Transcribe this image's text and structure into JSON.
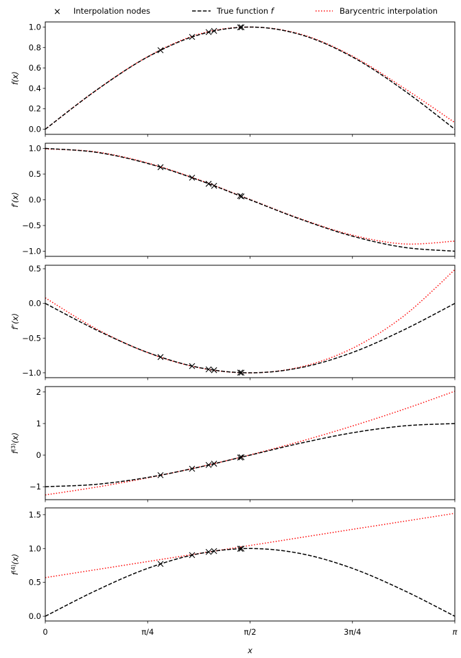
{
  "legend": {
    "placement": "top",
    "entries": [
      {
        "label": "Interpolation nodes",
        "style": "x-marker",
        "color": "#000000"
      },
      {
        "label": "True function f",
        "style": "dashed",
        "color": "#000000"
      },
      {
        "label": "Barycentric interpolation",
        "style": "dotted",
        "color": "#ff0000"
      }
    ]
  },
  "chart_data": [
    {
      "type": "line",
      "ylabel": "f(x)",
      "ylabel_sup": "",
      "ylabel_base": "f",
      "ylabel_prime": "",
      "xlim": [
        0,
        3.1416
      ],
      "ylim": [
        -0.05,
        1.05
      ],
      "yticks": [
        0.0,
        0.2,
        0.4,
        0.6,
        0.8,
        1.0
      ],
      "ytick_labels": [
        "0.0",
        "0.2",
        "0.4",
        "0.6",
        "0.8",
        "1.0"
      ],
      "x": [
        0,
        0.3927,
        0.7854,
        1.1781,
        1.5708,
        1.9635,
        2.3562,
        2.7489,
        3.1416
      ],
      "series": [
        {
          "name": "True function f",
          "values": [
            0,
            0.3827,
            0.7071,
            0.9239,
            1.0,
            0.9239,
            0.7071,
            0.3827,
            0
          ]
        },
        {
          "name": "Barycentric interpolation",
          "values": [
            0,
            0.383,
            0.71,
            0.93,
            1.0,
            0.928,
            0.715,
            0.405,
            0.065
          ]
        }
      ],
      "nodes": {
        "x": [
          0.884,
          1.126,
          1.253,
          1.295,
          1.495,
          1.505
        ],
        "y": [
          0.773,
          0.903,
          0.95,
          0.962,
          0.997,
          0.998
        ]
      }
    },
    {
      "type": "line",
      "ylabel": "f′(x)",
      "ylabel_sup": "",
      "ylabel_base": "f",
      "ylabel_prime": "′",
      "xlim": [
        0,
        3.1416
      ],
      "ylim": [
        -1.1,
        1.1
      ],
      "yticks": [
        -1.0,
        -0.5,
        0.0,
        0.5,
        1.0
      ],
      "ytick_labels": [
        "−1.0",
        "−0.5",
        "0.0",
        "0.5",
        "1.0"
      ],
      "x": [
        0,
        0.3927,
        0.7854,
        1.1781,
        1.5708,
        1.9635,
        2.3562,
        2.7489,
        3.1416
      ],
      "series": [
        {
          "name": "True function f",
          "values": [
            1,
            0.9239,
            0.7071,
            0.3827,
            0,
            -0.3827,
            -0.7071,
            -0.9239,
            -1
          ]
        },
        {
          "name": "Barycentric interpolation",
          "values": [
            0.99,
            0.93,
            0.715,
            0.389,
            0.006,
            -0.375,
            -0.688,
            -0.858,
            -0.804
          ]
        }
      ],
      "nodes": {
        "x": [
          0.884,
          1.126,
          1.253,
          1.295,
          1.495,
          1.505
        ],
        "y": [
          0.634,
          0.43,
          0.311,
          0.272,
          0.075,
          0.066
        ]
      }
    },
    {
      "type": "line",
      "ylabel": "f″(x)",
      "ylabel_sup": "",
      "ylabel_base": "f",
      "ylabel_prime": "″",
      "xlim": [
        0,
        3.1416
      ],
      "ylim": [
        -1.07,
        0.55
      ],
      "yticks": [
        -1.0,
        -0.5,
        0.0,
        0.5
      ],
      "ytick_labels": [
        "−1.0",
        "−0.5",
        "0.0",
        "0.5"
      ],
      "x": [
        0,
        0.3927,
        0.7854,
        1.1781,
        1.5708,
        1.9635,
        2.3562,
        2.7489,
        3.1416
      ],
      "series": [
        {
          "name": "True function f",
          "values": [
            0,
            -0.3827,
            -0.7071,
            -0.9239,
            -1.0,
            -0.9239,
            -0.7071,
            -0.3827,
            0
          ]
        },
        {
          "name": "Barycentric interpolation",
          "values": [
            0.08,
            -0.368,
            -0.709,
            -0.926,
            -1.001,
            -0.914,
            -0.647,
            -0.183,
            0.487
          ]
        }
      ],
      "nodes": {
        "x": [
          0.884,
          1.126,
          1.253,
          1.295,
          1.495,
          1.505
        ],
        "y": [
          -0.773,
          -0.903,
          -0.95,
          -0.962,
          -0.997,
          -0.998
        ]
      }
    },
    {
      "type": "line",
      "ylabel": "f(3)(x)",
      "ylabel_sup": "(3)",
      "ylabel_base": "f",
      "ylabel_prime": "",
      "xlim": [
        0,
        3.1416
      ],
      "ylim": [
        -1.41,
        2.17
      ],
      "yticks": [
        -1,
        0,
        1,
        2
      ],
      "ytick_labels": [
        "−1",
        "0",
        "1",
        "2"
      ],
      "x": [
        0,
        0.3927,
        0.7854,
        1.1781,
        1.5708,
        1.9635,
        2.3562,
        2.7489,
        3.1416
      ],
      "series": [
        {
          "name": "True function f",
          "values": [
            -1,
            -0.9239,
            -0.7071,
            -0.3827,
            0,
            0.3827,
            0.7071,
            0.9239,
            1
          ]
        },
        {
          "name": "Barycentric interpolation",
          "values": [
            -1.26,
            -1.013,
            -0.719,
            -0.379,
            0.008,
            0.442,
            0.922,
            1.449,
            2.023
          ]
        }
      ],
      "nodes": {
        "x": [
          0.884,
          1.126,
          1.253,
          1.295,
          1.495,
          1.505
        ],
        "y": [
          -0.634,
          -0.43,
          -0.311,
          -0.272,
          -0.075,
          -0.066
        ]
      }
    },
    {
      "type": "line",
      "ylabel": "f(4)(x)",
      "ylabel_sup": "(4)",
      "ylabel_base": "f",
      "ylabel_prime": "",
      "xlim": [
        0,
        3.1416
      ],
      "ylim": [
        -0.07,
        1.6
      ],
      "yticks": [
        0.0,
        0.5,
        1.0,
        1.5
      ],
      "ytick_labels": [
        "0.0",
        "0.5",
        "1.0",
        "1.5"
      ],
      "xlabel": "x",
      "xticks": [
        0,
        0.7854,
        1.5708,
        2.3562,
        3.1416
      ],
      "xtick_labels": [
        "0",
        "π/4",
        "π/2",
        "3π/4",
        "π"
      ],
      "x": [
        0,
        0.3927,
        0.7854,
        1.1781,
        1.5708,
        1.9635,
        2.3562,
        2.7489,
        3.1416
      ],
      "series": [
        {
          "name": "True function f",
          "values": [
            0,
            0.3827,
            0.7071,
            0.9239,
            1.0,
            0.9239,
            0.7071,
            0.3827,
            0
          ]
        },
        {
          "name": "Barycentric interpolation",
          "values": [
            0.57,
            0.689,
            0.808,
            0.926,
            1.045,
            1.164,
            1.283,
            1.401,
            1.52
          ]
        }
      ],
      "nodes": {
        "x": [
          0.884,
          1.126,
          1.253,
          1.295,
          1.495,
          1.505
        ],
        "y": [
          0.773,
          0.903,
          0.95,
          0.962,
          0.997,
          0.998
        ]
      }
    }
  ]
}
